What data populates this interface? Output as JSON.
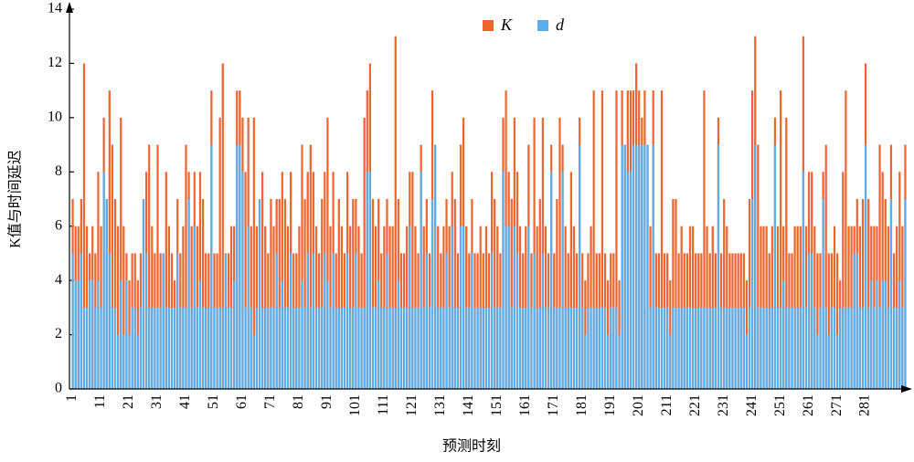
{
  "chart_data": {
    "type": "bar",
    "mode": "overlap",
    "xlabel": "预测时刻",
    "ylabel": "K值与时间延迟",
    "ylim": [
      0,
      14
    ],
    "yticks": [
      0,
      2,
      4,
      6,
      8,
      10,
      12,
      14
    ],
    "grid": false,
    "legend": "top",
    "categories": [
      "1",
      null,
      null,
      null,
      null,
      null,
      null,
      null,
      null,
      null,
      "11",
      null,
      null,
      null,
      null,
      null,
      null,
      null,
      null,
      null,
      "21",
      null,
      null,
      null,
      null,
      null,
      null,
      null,
      null,
      null,
      "31",
      null,
      null,
      null,
      null,
      null,
      null,
      null,
      null,
      null,
      "41",
      null,
      null,
      null,
      null,
      null,
      null,
      null,
      null,
      null,
      "51",
      null,
      null,
      null,
      null,
      null,
      null,
      null,
      null,
      null,
      "61",
      null,
      null,
      null,
      null,
      null,
      null,
      null,
      null,
      null,
      "71",
      null,
      null,
      null,
      null,
      null,
      null,
      null,
      null,
      null,
      "81",
      null,
      null,
      null,
      null,
      null,
      null,
      null,
      null,
      null,
      "91",
      null,
      null,
      null,
      null,
      null,
      null,
      null,
      null,
      null,
      "101",
      null,
      null,
      null,
      null,
      null,
      null,
      null,
      null,
      null,
      "111",
      null,
      null,
      null,
      null,
      null,
      null,
      null,
      null,
      null,
      "121",
      null,
      null,
      null,
      null,
      null,
      null,
      null,
      null,
      null,
      "131",
      null,
      null,
      null,
      null,
      null,
      null,
      null,
      null,
      null,
      "141",
      null,
      null,
      null,
      null,
      null,
      null,
      null,
      null,
      null,
      "151",
      null,
      null,
      null,
      null,
      null,
      null,
      null,
      null,
      null,
      "161",
      null,
      null,
      null,
      null,
      null,
      null,
      null,
      null,
      null,
      "171",
      null,
      null,
      null,
      null,
      null,
      null,
      null,
      null,
      null,
      "181",
      null,
      null,
      null,
      null,
      null,
      null,
      null,
      null,
      null,
      "191",
      null,
      null,
      null,
      null,
      null,
      null,
      null,
      null,
      null,
      "201",
      null,
      null,
      null,
      null,
      null,
      null,
      null,
      null,
      null,
      "211",
      null,
      null,
      null,
      null,
      null,
      null,
      null,
      null,
      null,
      "221",
      null,
      null,
      null,
      null,
      null,
      null,
      null,
      null,
      null,
      "231",
      null,
      null,
      null,
      null,
      null,
      null,
      null,
      null,
      null,
      "241",
      null,
      null,
      null,
      null,
      null,
      null,
      null,
      null,
      null,
      "251",
      null,
      null,
      null,
      null,
      null,
      null,
      null,
      null,
      null,
      "261",
      null,
      null,
      null,
      null,
      null,
      null,
      null,
      null,
      null,
      "271",
      null,
      null,
      null,
      null,
      null,
      null,
      null,
      null,
      null,
      "281",
      null,
      null,
      null,
      null,
      null,
      null,
      null,
      null,
      null,
      null,
      null,
      null,
      null,
      null
    ],
    "series": [
      {
        "name": "K",
        "color": "#ef6530",
        "values": [
          7,
          6,
          6,
          7,
          12,
          6,
          5,
          6,
          5,
          8,
          6,
          10,
          7,
          11,
          9,
          7,
          6,
          10,
          6,
          5,
          4,
          5,
          5,
          4,
          5,
          7,
          8,
          9,
          6,
          5,
          9,
          5,
          5,
          8,
          6,
          5,
          4,
          7,
          5,
          6,
          9,
          8,
          6,
          8,
          6,
          8,
          7,
          5,
          5,
          11,
          5,
          5,
          10,
          12,
          5,
          5,
          6,
          6,
          11,
          11,
          10,
          8,
          10,
          6,
          10,
          6,
          7,
          8,
          6,
          5,
          7,
          6,
          7,
          7,
          8,
          7,
          6,
          8,
          5,
          5,
          6,
          9,
          7,
          8,
          9,
          8,
          6,
          5,
          7,
          8,
          10,
          6,
          8,
          5,
          7,
          6,
          5,
          8,
          6,
          7,
          7,
          6,
          5,
          10,
          11,
          12,
          7,
          6,
          7,
          5,
          6,
          7,
          6,
          6,
          13,
          7,
          5,
          5,
          6,
          8,
          8,
          6,
          5,
          9,
          6,
          7,
          5,
          11,
          9,
          6,
          5,
          6,
          7,
          6,
          8,
          7,
          5,
          9,
          10,
          6,
          5,
          7,
          5,
          5,
          6,
          5,
          6,
          5,
          8,
          7,
          6,
          5,
          10,
          11,
          8,
          7,
          10,
          8,
          6,
          5,
          6,
          9,
          5,
          10,
          6,
          7,
          10,
          6,
          5,
          9,
          5,
          7,
          10,
          9,
          6,
          5,
          8,
          6,
          5,
          10,
          5,
          4,
          5,
          6,
          11,
          5,
          5,
          11,
          5,
          4,
          5,
          5,
          11,
          4,
          11,
          9,
          11,
          11,
          11,
          12,
          11,
          10,
          11,
          9,
          6,
          11,
          5,
          5,
          11,
          5,
          5,
          4,
          7,
          7,
          5,
          6,
          5,
          5,
          6,
          6,
          5,
          5,
          5,
          11,
          6,
          5,
          6,
          5,
          10,
          5,
          7,
          6,
          5,
          5,
          5,
          5,
          5,
          5,
          4,
          7,
          11,
          13,
          9,
          6,
          6,
          6,
          5,
          6,
          10,
          6,
          11,
          6,
          10,
          5,
          5,
          6,
          6,
          6,
          13,
          6,
          8,
          8,
          6,
          5,
          5,
          8,
          9,
          5,
          5,
          6,
          5,
          4,
          8,
          11,
          6,
          6,
          6,
          7,
          6,
          7,
          12,
          7,
          6,
          6,
          6,
          9,
          8,
          7,
          6,
          9,
          5,
          6,
          8,
          6,
          9
        ]
      },
      {
        "name": "d",
        "color": "#5aaeec",
        "values": [
          5,
          4,
          4,
          5,
          3,
          3,
          4,
          4,
          3,
          4,
          3,
          8,
          7,
          5,
          3,
          3,
          2,
          4,
          2,
          4,
          2,
          3,
          3,
          2,
          3,
          7,
          5,
          3,
          3,
          3,
          3,
          3,
          5,
          3,
          3,
          3,
          3,
          5,
          3,
          3,
          3,
          7,
          3,
          6,
          3,
          4,
          3,
          3,
          3,
          9,
          3,
          3,
          3,
          3,
          5,
          3,
          3,
          4,
          9,
          9,
          8,
          3,
          6,
          3,
          2,
          3,
          7,
          3,
          3,
          3,
          3,
          3,
          5,
          3,
          4,
          3,
          3,
          5,
          3,
          3,
          3,
          4,
          3,
          5,
          3,
          5,
          3,
          3,
          3,
          5,
          4,
          3,
          5,
          3,
          3,
          3,
          3,
          5,
          3,
          3,
          5,
          3,
          3,
          3,
          8,
          8,
          3,
          3,
          4,
          3,
          3,
          5,
          3,
          3,
          3,
          4,
          3,
          3,
          3,
          6,
          3,
          3,
          3,
          8,
          3,
          5,
          3,
          7,
          9,
          3,
          3,
          3,
          5,
          3,
          6,
          3,
          3,
          6,
          6,
          3,
          3,
          5,
          3,
          3,
          3,
          3,
          3,
          3,
          5,
          3,
          3,
          3,
          8,
          6,
          6,
          3,
          6,
          5,
          3,
          3,
          3,
          6,
          3,
          5,
          3,
          3,
          5,
          3,
          3,
          8,
          3,
          3,
          3,
          8,
          3,
          3,
          3,
          3,
          3,
          9,
          3,
          2,
          3,
          3,
          3,
          3,
          3,
          3,
          3,
          2,
          3,
          3,
          3,
          2,
          9,
          9,
          8,
          8,
          9,
          9,
          9,
          9,
          9,
          9,
          3,
          9,
          3,
          3,
          3,
          3,
          3,
          2,
          3,
          3,
          3,
          3,
          3,
          3,
          3,
          3,
          3,
          3,
          3,
          3,
          3,
          3,
          3,
          3,
          9,
          3,
          3,
          3,
          3,
          3,
          3,
          3,
          3,
          3,
          2,
          3,
          7,
          9,
          3,
          3,
          3,
          3,
          3,
          3,
          9,
          3,
          3,
          4,
          3,
          3,
          3,
          3,
          3,
          3,
          8,
          3,
          5,
          5,
          3,
          2,
          3,
          7,
          3,
          2,
          3,
          3,
          2,
          3,
          3,
          3,
          3,
          3,
          5,
          5,
          3,
          3,
          9,
          3,
          4,
          3,
          4,
          3,
          4,
          4,
          3,
          7,
          3,
          3,
          4,
          3,
          7
        ]
      }
    ]
  }
}
